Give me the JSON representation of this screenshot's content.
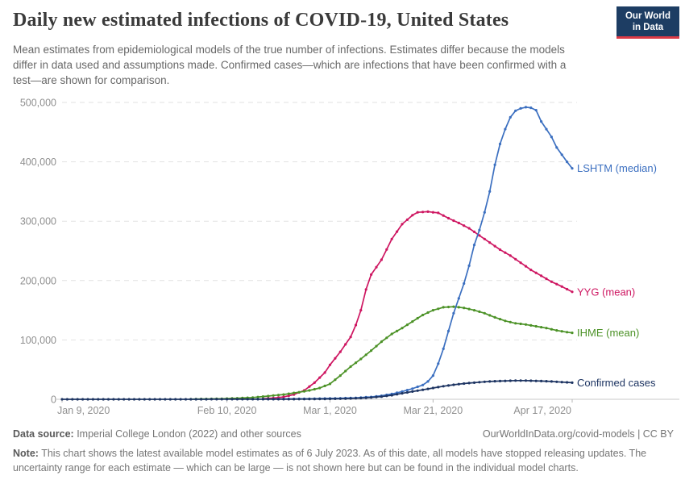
{
  "header": {
    "title": "Daily new estimated infections of COVID-19, United States",
    "subtitle": "Mean estimates from epidemiological models of the true number of infections. Estimates differ because the models differ in data used and assumptions made. Confirmed cases—which are infections that have been confirmed with a test—are shown for comparison."
  },
  "logo": {
    "line1": "Our World",
    "line2": "in Data",
    "bg_color": "#1d3d63",
    "bar_color": "#dc3a46"
  },
  "chart_data": {
    "type": "line",
    "title": "Daily new estimated infections of COVID-19, United States",
    "xlabel": "",
    "ylabel": "",
    "grid": "dashed horizontal",
    "legend_position": "line-end-labels",
    "x_axis": {
      "unit": "date",
      "range_days": [
        0,
        99
      ],
      "ticks": [
        {
          "day": 0,
          "label": "Jan 9, 2020"
        },
        {
          "day": 32,
          "label": "Feb 10, 2020"
        },
        {
          "day": 52,
          "label": "Mar 1, 2020"
        },
        {
          "day": 72,
          "label": "Mar 21, 2020"
        },
        {
          "day": 99,
          "label": "Apr 17, 2020"
        }
      ]
    },
    "y_axis": {
      "range": [
        0,
        500000
      ],
      "ticks": [
        {
          "value": 0,
          "label": "0"
        },
        {
          "value": 100000,
          "label": "100,000"
        },
        {
          "value": 200000,
          "label": "200,000"
        },
        {
          "value": 300000,
          "label": "300,000"
        },
        {
          "value": 400000,
          "label": "400,000"
        },
        {
          "value": 500000,
          "label": "500,000"
        }
      ]
    },
    "series": [
      {
        "name": "LSHTM (median)",
        "color": "#3b6fc0",
        "points": [
          [
            38,
            300
          ],
          [
            42,
            500
          ],
          [
            46,
            800
          ],
          [
            50,
            1200
          ],
          [
            54,
            1800
          ],
          [
            57,
            2500
          ],
          [
            60,
            4000
          ],
          [
            62,
            6000
          ],
          [
            64,
            9000
          ],
          [
            66,
            13000
          ],
          [
            68,
            18000
          ],
          [
            70,
            24000
          ],
          [
            71,
            30000
          ],
          [
            72,
            40000
          ],
          [
            73,
            60000
          ],
          [
            74,
            85000
          ],
          [
            75,
            115000
          ],
          [
            76,
            145000
          ],
          [
            77,
            170000
          ],
          [
            78,
            195000
          ],
          [
            79,
            225000
          ],
          [
            80,
            260000
          ],
          [
            81,
            285000
          ],
          [
            82,
            315000
          ],
          [
            83,
            350000
          ],
          [
            84,
            395000
          ],
          [
            85,
            430000
          ],
          [
            86,
            455000
          ],
          [
            87,
            475000
          ],
          [
            88,
            486000
          ],
          [
            89,
            490000
          ],
          [
            90,
            492000
          ],
          [
            91,
            491000
          ],
          [
            92,
            487000
          ],
          [
            93,
            468000
          ],
          [
            94,
            455000
          ],
          [
            95,
            442000
          ],
          [
            96,
            424000
          ],
          [
            97,
            412000
          ],
          [
            98,
            400000
          ],
          [
            99,
            389000
          ]
        ]
      },
      {
        "name": "YYG (mean)",
        "color": "#ce1661",
        "points": [
          [
            39,
            1000
          ],
          [
            41,
            2000
          ],
          [
            43,
            4000
          ],
          [
            45,
            8000
          ],
          [
            47,
            15000
          ],
          [
            49,
            28000
          ],
          [
            51,
            45000
          ],
          [
            52,
            58000
          ],
          [
            54,
            80000
          ],
          [
            56,
            105000
          ],
          [
            57,
            125000
          ],
          [
            58,
            150000
          ],
          [
            59,
            185000
          ],
          [
            60,
            210000
          ],
          [
            62,
            235000
          ],
          [
            64,
            270000
          ],
          [
            66,
            295000
          ],
          [
            68,
            310000
          ],
          [
            69,
            315000
          ],
          [
            71,
            316000
          ],
          [
            73,
            314000
          ],
          [
            75,
            305000
          ],
          [
            77,
            297000
          ],
          [
            79,
            288000
          ],
          [
            81,
            276000
          ],
          [
            83,
            264000
          ],
          [
            85,
            252000
          ],
          [
            87,
            242000
          ],
          [
            89,
            230000
          ],
          [
            91,
            218000
          ],
          [
            93,
            208000
          ],
          [
            95,
            198000
          ],
          [
            97,
            190000
          ],
          [
            99,
            181000
          ]
        ]
      },
      {
        "name": "IHME (mean)",
        "color": "#4c9227",
        "points": [
          [
            25,
            300
          ],
          [
            28,
            600
          ],
          [
            31,
            1000
          ],
          [
            34,
            1800
          ],
          [
            37,
            3000
          ],
          [
            40,
            5500
          ],
          [
            43,
            8000
          ],
          [
            46,
            12000
          ],
          [
            48,
            15000
          ],
          [
            50,
            19000
          ],
          [
            52,
            26000
          ],
          [
            54,
            40000
          ],
          [
            56,
            55000
          ],
          [
            58,
            68000
          ],
          [
            60,
            82000
          ],
          [
            62,
            97000
          ],
          [
            64,
            110000
          ],
          [
            66,
            120000
          ],
          [
            68,
            131000
          ],
          [
            70,
            142000
          ],
          [
            72,
            150000
          ],
          [
            74,
            155000
          ],
          [
            76,
            156000
          ],
          [
            78,
            154000
          ],
          [
            80,
            150000
          ],
          [
            82,
            145000
          ],
          [
            84,
            138000
          ],
          [
            86,
            132000
          ],
          [
            88,
            128000
          ],
          [
            90,
            126000
          ],
          [
            92,
            123000
          ],
          [
            94,
            120000
          ],
          [
            96,
            116000
          ],
          [
            98,
            113000
          ],
          [
            99,
            112000
          ]
        ]
      },
      {
        "name": "Confirmed cases",
        "color": "#1d3462",
        "points": [
          [
            0,
            0
          ],
          [
            5,
            0
          ],
          [
            10,
            0
          ],
          [
            15,
            0
          ],
          [
            20,
            50
          ],
          [
            25,
            60
          ],
          [
            30,
            70
          ],
          [
            35,
            90
          ],
          [
            40,
            120
          ],
          [
            45,
            200
          ],
          [
            48,
            350
          ],
          [
            50,
            500
          ],
          [
            52,
            700
          ],
          [
            54,
            900
          ],
          [
            56,
            1400
          ],
          [
            58,
            2000
          ],
          [
            60,
            3000
          ],
          [
            62,
            4500
          ],
          [
            64,
            6800
          ],
          [
            66,
            10000
          ],
          [
            68,
            13000
          ],
          [
            70,
            16000
          ],
          [
            72,
            19000
          ],
          [
            74,
            22000
          ],
          [
            76,
            24500
          ],
          [
            78,
            26500
          ],
          [
            80,
            28000
          ],
          [
            82,
            29500
          ],
          [
            84,
            30500
          ],
          [
            86,
            31000
          ],
          [
            88,
            31500
          ],
          [
            90,
            31500
          ],
          [
            92,
            31000
          ],
          [
            94,
            30500
          ],
          [
            96,
            29500
          ],
          [
            98,
            28500
          ],
          [
            99,
            28000
          ]
        ]
      }
    ]
  },
  "footer": {
    "datasource_label": "Data source:",
    "datasource_text": " Imperial College London (2022) and other sources",
    "link": "OurWorldInData.org/covid-models | CC BY",
    "note_label": "Note:",
    "note_text": " This chart shows the latest available model estimates as of 6 July 2023. As of this date, all models have stopped releasing updates. The uncertainty range for each estimate — which can be large — is not shown here but can be found in the individual model charts."
  }
}
